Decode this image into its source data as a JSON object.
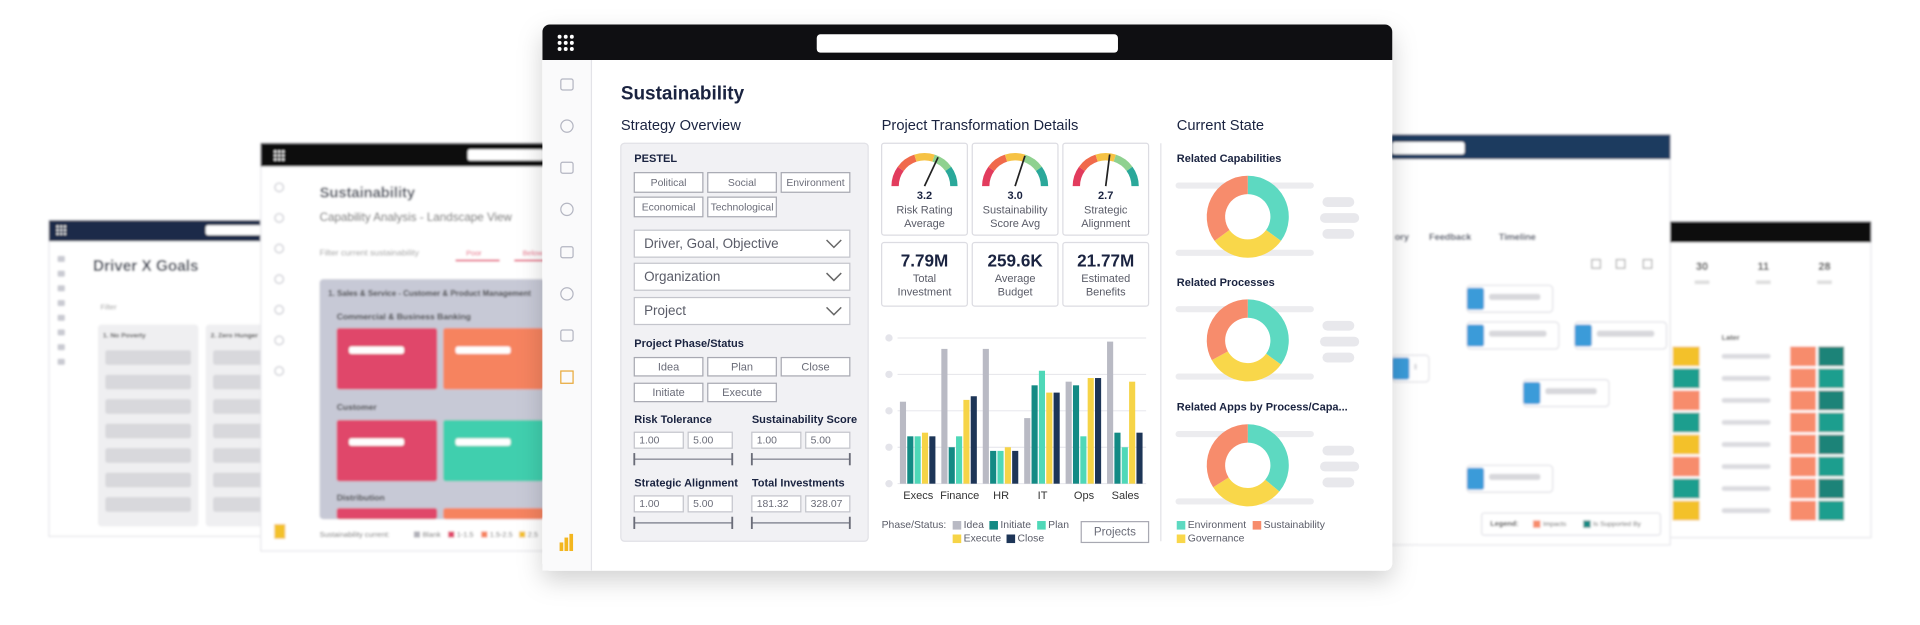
{
  "main": {
    "title": "Sustainability",
    "strategy_overview": {
      "heading": "Strategy Overview",
      "pestel_label": "PESTEL",
      "pestel": [
        "Political",
        "Social",
        "Environment",
        "Economical",
        "Technological"
      ],
      "dropdowns": [
        "Driver, Goal, Objective",
        "Organization",
        "Project"
      ],
      "phase_label": "Project Phase/Status",
      "phases": [
        "Idea",
        "Plan",
        "Close",
        "Initiate",
        "Execute"
      ],
      "ranges": [
        {
          "label": "Risk Tolerance",
          "min": "1.00",
          "max": "5.00"
        },
        {
          "label": "Sustainability Score",
          "min": "1.00",
          "max": "5.00"
        },
        {
          "label": "Strategic Alignment",
          "min": "1.00",
          "max": "5.00"
        },
        {
          "label": "Total Investments",
          "min": "181.32",
          "max": "328.07"
        }
      ]
    },
    "transformation": {
      "heading": "Project Transformation Details",
      "gauge_range": [
        0,
        5
      ],
      "gauges": [
        {
          "value": 3.2,
          "value_label": "3.2",
          "label": [
            "Risk Rating",
            "Average"
          ]
        },
        {
          "value": 3,
          "value_label": "3.0",
          "label": [
            "Sustainability",
            "Score Avg"
          ]
        },
        {
          "value": 2.7,
          "value_label": "2.7",
          "label": [
            "Strategic",
            "Alignment"
          ]
        }
      ],
      "kpis": [
        {
          "value": "7.79M",
          "label": [
            "Total",
            "Investment"
          ]
        },
        {
          "value": "259.6K",
          "label": [
            "Average",
            "Budget"
          ]
        },
        {
          "value": "21.77M",
          "label": [
            "Estimated",
            "Benefits"
          ]
        }
      ],
      "bar_chart": {
        "type": "bar",
        "categories": [
          "Execs",
          "Finance",
          "HR",
          "IT",
          "Ops",
          "Sales"
        ],
        "ylim": [
          0,
          4
        ],
        "yticks": [
          0,
          1,
          2,
          3,
          4
        ],
        "series": [
          {
            "name": "Idea",
            "color": "#b9bac4",
            "values": [
              2.25,
              3.7,
              3.7,
              1.8,
              2.8,
              3.9
            ]
          },
          {
            "name": "Initiate",
            "color": "#138a84",
            "values": [
              1.3,
              1.0,
              0.9,
              2.7,
              2.7,
              1.4
            ]
          },
          {
            "name": "Plan",
            "color": "#4fd8b8",
            "values": [
              1.3,
              1.3,
              0.9,
              3.1,
              1.3,
              1.0
            ]
          },
          {
            "name": "Execute",
            "color": "#f6d447",
            "values": [
              1.4,
              2.3,
              1.0,
              2.5,
              2.9,
              2.8
            ]
          },
          {
            "name": "Close",
            "color": "#1d3557",
            "values": [
              1.3,
              2.4,
              0.9,
              2.5,
              2.9,
              1.4
            ]
          }
        ]
      },
      "legend_label": "Phase/Status:",
      "button": "Projects"
    },
    "current_state": {
      "heading": "Current State",
      "legend": [
        {
          "name": "Environment",
          "color": "#5dd9c1"
        },
        {
          "name": "Sustainability",
          "color": "#f78c6c"
        },
        {
          "name": "Governance",
          "color": "#f9d74a"
        }
      ],
      "donuts": [
        {
          "title": "Related Capabilities",
          "values": [
            35,
            35,
            30
          ]
        },
        {
          "title": "Related Processes",
          "values": [
            35,
            33,
            32
          ]
        },
        {
          "title": "Related Apps by Process/Capa...",
          "values": [
            36,
            34,
            30
          ]
        }
      ]
    }
  },
  "background": {
    "left_far": {
      "title": "Driver X Goals",
      "filter": "Filter",
      "columns": [
        "1. No Poverty",
        "2. Zero Hunger"
      ]
    },
    "left": {
      "title": "Sustainability",
      "subtitle": "Capability Analysis - Landscape View",
      "filter": "Filter current sustainability",
      "chips": [
        "Poor",
        "Below"
      ],
      "panel": "1. Sales & Service - Customer & Product Management",
      "groups": [
        "Commercial & Business Banking",
        "Customer",
        "Distribution"
      ],
      "footer": "Sustainability current:",
      "footer_legend": [
        "Blank",
        "1-1.5",
        "1.5-2.5",
        "2.5"
      ]
    },
    "right": {
      "tabs": [
        "ory",
        "Feedback",
        "Timeline"
      ],
      "legend": "Legend:",
      "legend_items": [
        "Impacts",
        "Is Supported By"
      ]
    },
    "right_far": {
      "stats": [
        "30",
        "11",
        "28"
      ],
      "column": "Later"
    }
  }
}
